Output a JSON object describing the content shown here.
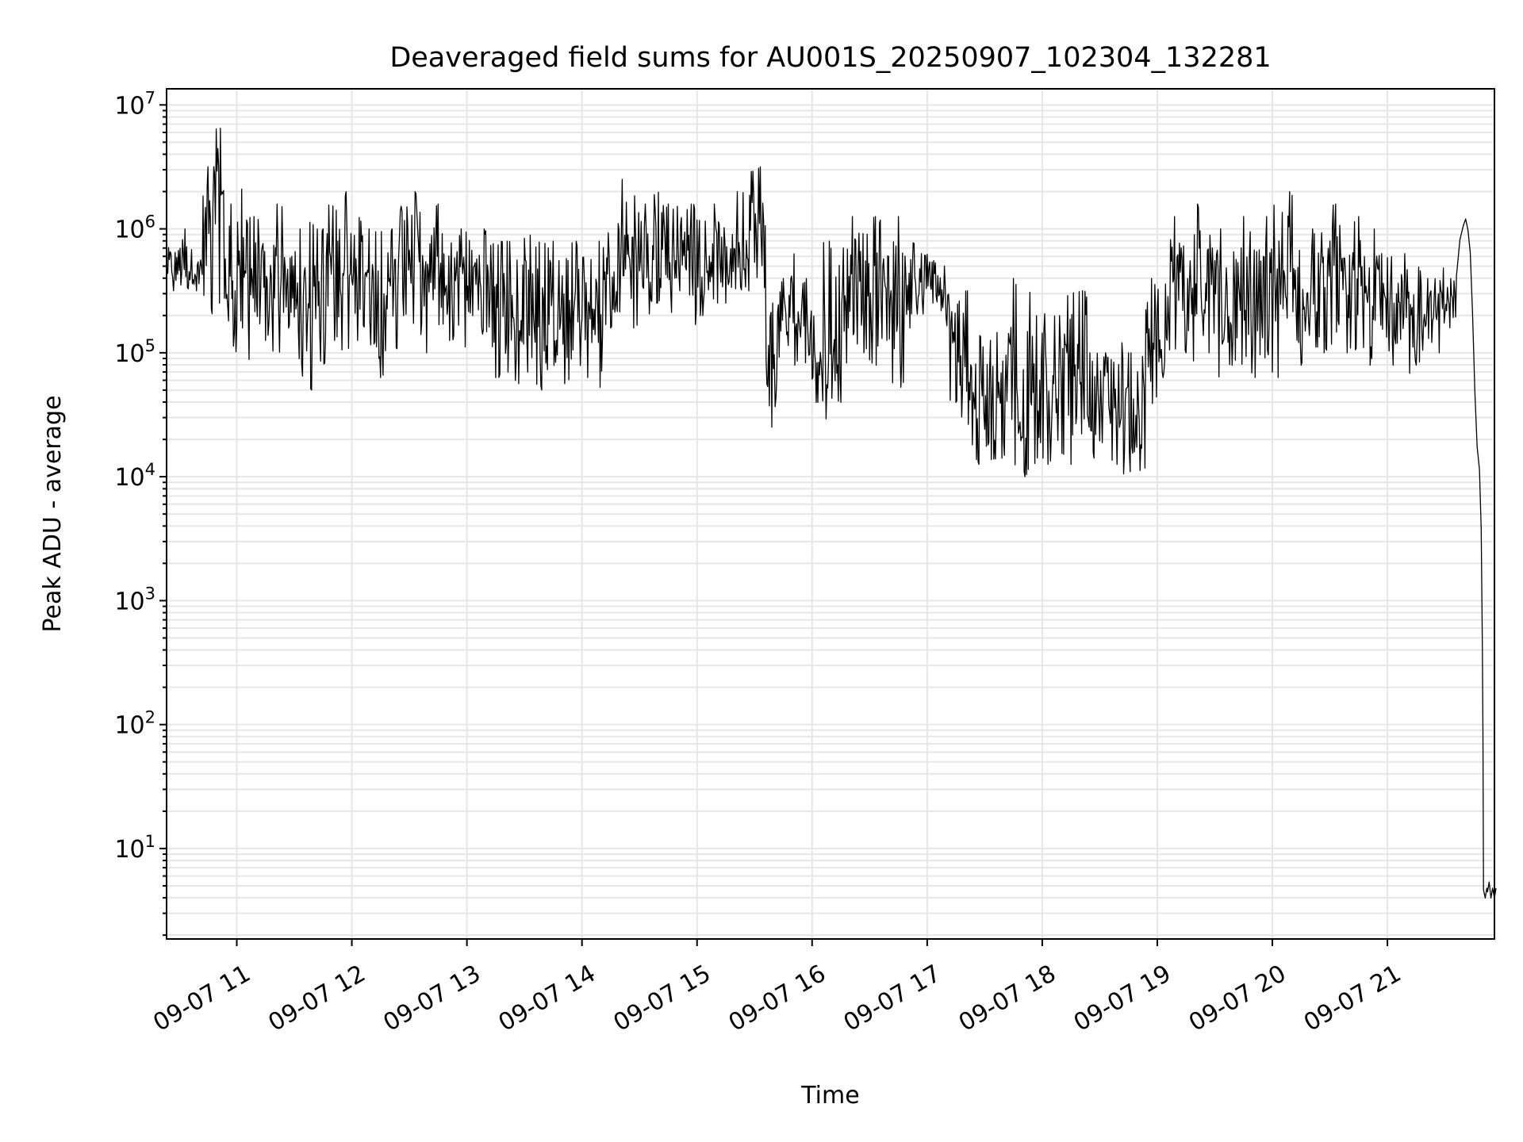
{
  "chart_data": {
    "type": "line",
    "title": "Deaveraged field sums for AU001S_20250907_102304_132281",
    "xlabel": "Time",
    "ylabel": "Peak ADU - average",
    "yscale": "log",
    "ylim_log10": [
      0.27,
      7.13
    ],
    "xlim_hours": [
      10.39,
      21.93
    ],
    "grid": true,
    "line_color": "#000000",
    "grid_color": "#e6e6e6",
    "x_ticks": [
      {
        "hour": 11,
        "label": "09-07 11"
      },
      {
        "hour": 12,
        "label": "09-07 12"
      },
      {
        "hour": 13,
        "label": "09-07 13"
      },
      {
        "hour": 14,
        "label": "09-07 14"
      },
      {
        "hour": 15,
        "label": "09-07 15"
      },
      {
        "hour": 16,
        "label": "09-07 16"
      },
      {
        "hour": 17,
        "label": "09-07 17"
      },
      {
        "hour": 18,
        "label": "09-07 18"
      },
      {
        "hour": 19,
        "label": "09-07 19"
      },
      {
        "hour": 20,
        "label": "09-07 20"
      },
      {
        "hour": 21,
        "label": "09-07 21"
      }
    ],
    "y_ticks": [
      {
        "exp": 1,
        "base": "10",
        "sup": "1"
      },
      {
        "exp": 2,
        "base": "10",
        "sup": "2"
      },
      {
        "exp": 3,
        "base": "10",
        "sup": "3"
      },
      {
        "exp": 4,
        "base": "10",
        "sup": "4"
      },
      {
        "exp": 5,
        "base": "10",
        "sup": "5"
      },
      {
        "exp": 6,
        "base": "10",
        "sup": "6"
      },
      {
        "exp": 7,
        "base": "10",
        "sup": "7"
      }
    ],
    "envelope": {
      "t_start_hours": 10.4,
      "step_hours": 0.1,
      "log10_low": [
        5.5,
        5.4,
        5.5,
        5.3,
        5.4,
        5.0,
        5.2,
        4.9,
        5.1,
        5.0,
        5.2,
        4.75,
        4.7,
        4.9,
        5.1,
        5.0,
        5.1,
        4.9,
        4.8,
        5.0,
        5.3,
        5.2,
        5.0,
        5.2,
        5.1,
        4.9,
        5.3,
        5.0,
        4.8,
        4.8,
        4.75,
        4.8,
        4.7,
        4.7,
        4.75,
        4.7,
        4.8,
        4.7,
        5.2,
        5.3,
        5.2,
        5.3,
        5.4,
        5.3,
        5.5,
        5.2,
        5.3,
        5.4,
        5.4,
        5.5,
        5.5,
        5.0,
        4.4,
        4.8,
        4.9,
        4.6,
        4.6,
        4.4,
        4.6,
        4.9,
        5.0,
        4.9,
        5.1,
        4.7,
        5.2,
        5.3,
        5.4,
        5.2,
        4.6,
        4.25,
        4.1,
        4.1,
        4.15,
        4.05,
        4.0,
        4.1,
        4.1,
        4.15,
        4.1,
        4.1,
        4.15,
        4.1,
        4.1,
        4.0,
        4.05,
        4.4,
        4.8,
        5.0,
        5.0,
        4.9,
        5.0,
        4.8,
        4.9,
        4.7,
        4.8,
        4.7,
        4.8,
        5.1,
        4.9,
        5.0,
        5.0,
        4.9,
        5.0,
        5.0,
        4.9,
        5.1,
        4.9,
        4.8,
        4.9,
        5.0,
        5.0,
        5.2
      ],
      "log10_high": [
        5.9,
        6.0,
        5.9,
        6.5,
        6.83,
        6.2,
        6.5,
        6.1,
        6.0,
        6.2,
        6.0,
        6.0,
        6.1,
        6.0,
        6.2,
        6.3,
        6.1,
        6.0,
        6.0,
        6.0,
        6.4,
        6.3,
        6.1,
        6.2,
        6.1,
        6.0,
        6.1,
        6.0,
        5.9,
        5.9,
        6.0,
        5.95,
        5.9,
        5.9,
        5.95,
        5.9,
        5.8,
        5.9,
        6.2,
        6.4,
        6.3,
        6.2,
        6.3,
        6.2,
        6.3,
        6.2,
        6.1,
        6.2,
        6.1,
        6.3,
        6.5,
        6.5,
        5.6,
        5.6,
        5.8,
        5.6,
        5.5,
        5.9,
        5.9,
        6.1,
        6.0,
        6.1,
        5.9,
        6.1,
        5.9,
        5.8,
        5.8,
        5.7,
        5.6,
        5.5,
        5.3,
        5.1,
        5.2,
        5.6,
        5.5,
        5.3,
        5.5,
        5.3,
        5.5,
        5.5,
        5.2,
        5.0,
        5.1,
        5.0,
        5.0,
        5.6,
        5.8,
        6.1,
        6.0,
        6.2,
        6.1,
        6.0,
        6.0,
        6.1,
        6.0,
        6.1,
        6.2,
        6.3,
        6.0,
        6.0,
        6.0,
        6.2,
        5.9,
        6.1,
        6.0,
        5.8,
        5.8,
        5.8,
        5.7,
        5.6,
        5.7,
        5.6
      ]
    },
    "tail": {
      "hours": [
        21.6,
        21.63,
        21.66,
        21.68,
        21.7,
        21.72,
        21.74,
        21.76,
        21.78,
        21.8,
        21.815,
        21.825,
        21.83,
        21.835,
        21.85,
        21.87,
        21.9,
        21.93
      ],
      "log10": [
        5.6,
        5.9,
        6.02,
        6.08,
        6.0,
        5.8,
        5.3,
        4.7,
        4.25,
        4.05,
        3.6,
        2.6,
        1.95,
        0.65,
        0.6,
        0.65,
        0.6,
        0.6
      ]
    }
  }
}
